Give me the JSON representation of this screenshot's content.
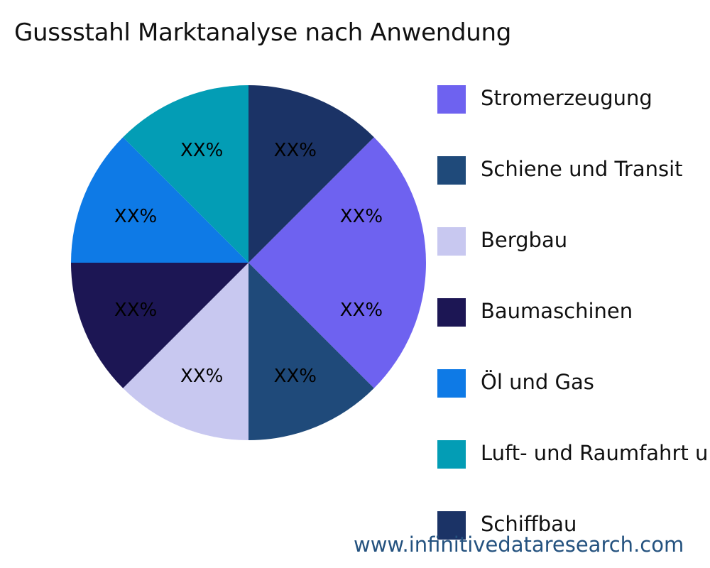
{
  "title": "Gussstahl Marktanalyse nach Anwendung",
  "watermark": "www.infinitivedataresearch.com",
  "chart_data": {
    "type": "pie",
    "title": "Gussstahl Marktanalyse nach Anwendung",
    "categories": [
      "Stromerzeugung",
      "Schiene und Transit",
      "Bergbau",
      "Baumaschinen",
      "Öl und Gas",
      "Luft- und Raumfahrt u",
      "Schiffbau"
    ],
    "values": [
      25,
      12.5,
      12.5,
      12.5,
      12.5,
      12.5,
      12.5
    ],
    "data_labels": [
      "XX%",
      "XX%",
      "XX%",
      "XX%",
      "XX%",
      "XX%",
      "XX%"
    ],
    "colors": [
      "#6e62f0",
      "#1f4a7a",
      "#c8c8f0",
      "#1c1654",
      "#0e7ae6",
      "#039db5",
      "#1b3366"
    ],
    "start_angle_deg": 45,
    "direction": "clockwise",
    "legend_position": "right"
  },
  "legend": {
    "items": [
      {
        "label": "Stromerzeugung",
        "color": "#6e62f0"
      },
      {
        "label": "Schiene und Transit",
        "color": "#1f4a7a"
      },
      {
        "label": "Bergbau",
        "color": "#c8c8f0"
      },
      {
        "label": "Baumaschinen",
        "color": "#1c1654"
      },
      {
        "label": "Öl und Gas",
        "color": "#0e7ae6"
      },
      {
        "label": "Luft- und Raumfahrt u",
        "color": "#039db5"
      },
      {
        "label": "Schiffbau",
        "color": "#1b3366"
      }
    ]
  }
}
